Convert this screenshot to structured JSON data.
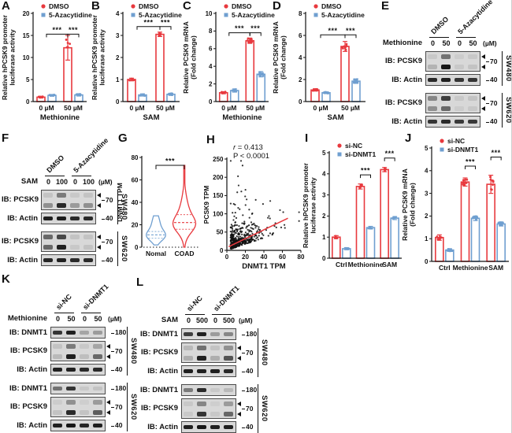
{
  "colors": {
    "red": "#e8393e",
    "blue": "#6f9fd0",
    "ink": "#111111",
    "blot_bg": "#d8d8d8"
  },
  "panels": {
    "A": {
      "letter": "A"
    },
    "B": {
      "letter": "B"
    },
    "C": {
      "letter": "C"
    },
    "D": {
      "letter": "D"
    },
    "E": {
      "letter": "E"
    },
    "F": {
      "letter": "F"
    },
    "G": {
      "letter": "G"
    },
    "H": {
      "letter": "H"
    },
    "I": {
      "letter": "I"
    },
    "J": {
      "letter": "J"
    },
    "K": {
      "letter": "K"
    },
    "L": {
      "letter": "L"
    }
  },
  "chart_data": [
    {
      "panel": "A",
      "type": "bar",
      "ylabel_lines": [
        "Relative hPCSK9 promoter",
        "luciferase activity"
      ],
      "ylim": [
        0,
        20
      ],
      "yticks": [
        0,
        5,
        10,
        15,
        20
      ],
      "categories": [
        "0 µM",
        "50 µM"
      ],
      "xlabel": "Methionine",
      "legend": [
        "DMSO",
        "5-Azacytidine"
      ],
      "legend_pos": "top",
      "series": [
        {
          "name": "DMSO",
          "color": "red",
          "values": [
            1.0,
            12.2
          ],
          "errors": [
            0.2,
            2.8
          ]
        },
        {
          "name": "5-Azacytidine",
          "color": "blue",
          "values": [
            1.4,
            1.5
          ],
          "errors": [
            0.2,
            0.25
          ]
        }
      ],
      "significance": [
        {
          "label": "***",
          "from": [
            0,
            -1
          ],
          "to": [
            1,
            0
          ],
          "y": 15.3
        },
        {
          "label": "***",
          "from": [
            1,
            0
          ],
          "to": [
            1,
            1
          ],
          "y": 15.3
        }
      ],
      "dots": 5,
      "ml": 40
    },
    {
      "panel": "B",
      "type": "bar",
      "ylabel_lines": [
        "Relative hPCSK9 promoter",
        "luciferase activity"
      ],
      "ylim": [
        0,
        4
      ],
      "yticks": [
        0,
        1,
        2,
        3,
        4
      ],
      "categories": [
        "0 µM",
        "50 µM"
      ],
      "xlabel": "SAM",
      "legend": [
        "DMSO",
        "5-Azacytidine"
      ],
      "legend_pos": "top",
      "series": [
        {
          "name": "DMSO",
          "color": "red",
          "values": [
            1.0,
            3.05
          ],
          "errors": [
            0.06,
            0.1
          ]
        },
        {
          "name": "5-Azacytidine",
          "color": "blue",
          "values": [
            0.3,
            0.33
          ],
          "errors": [
            0.05,
            0.05
          ]
        }
      ],
      "significance": [
        {
          "label": "***",
          "from": [
            0,
            -1
          ],
          "to": [
            1,
            0
          ],
          "y": 3.4
        },
        {
          "label": "***",
          "from": [
            1,
            0
          ],
          "to": [
            1,
            1
          ],
          "y": 3.4
        }
      ],
      "dots": 4,
      "ml": 40
    },
    {
      "panel": "C",
      "type": "bar",
      "ylabel_lines": [
        "Relative PCSK9 mRNA",
        "(Fold change)"
      ],
      "ylim": [
        0,
        10
      ],
      "yticks": [
        0,
        2,
        4,
        6,
        8,
        10
      ],
      "categories": [
        "0 µM",
        "50 µM"
      ],
      "xlabel": "Methionine",
      "legend": [
        "DMSO",
        "5-Azacytidine"
      ],
      "legend_pos": "top",
      "series": [
        {
          "name": "DMSO",
          "color": "red",
          "values": [
            1.0,
            6.9
          ],
          "errors": [
            0.12,
            0.3
          ]
        },
        {
          "name": "5-Azacytidine",
          "color": "blue",
          "values": [
            1.25,
            3.1
          ],
          "errors": [
            0.18,
            0.3
          ]
        }
      ],
      "significance": [
        {
          "label": "***",
          "from": [
            0,
            -1
          ],
          "to": [
            1,
            0
          ],
          "y": 7.8
        },
        {
          "label": "***",
          "from": [
            1,
            0
          ],
          "to": [
            1,
            1
          ],
          "y": 7.8
        }
      ],
      "dots": 9,
      "ml": 42
    },
    {
      "panel": "D",
      "type": "bar",
      "ylabel_lines": [
        "Relative PCSK9 mRNA",
        "(Fold change)"
      ],
      "ylim": [
        0,
        8
      ],
      "yticks": [
        0,
        2,
        4,
        6,
        8
      ],
      "categories": [
        "0 µM",
        "50 µM"
      ],
      "xlabel": "SAM",
      "legend": [
        "DMSO",
        "5-Azacytidine"
      ],
      "legend_pos": "top",
      "series": [
        {
          "name": "DMSO",
          "color": "red",
          "values": [
            1.05,
            5.0
          ],
          "errors": [
            0.1,
            0.45
          ]
        },
        {
          "name": "5-Azacytidine",
          "color": "blue",
          "values": [
            0.8,
            1.85
          ],
          "errors": [
            0.08,
            0.2
          ]
        }
      ],
      "significance": [
        {
          "label": "***",
          "from": [
            0,
            -1
          ],
          "to": [
            1,
            0
          ],
          "y": 6.05
        },
        {
          "label": "***",
          "from": [
            1,
            0
          ],
          "to": [
            1,
            1
          ],
          "y": 6.05
        }
      ],
      "dots": 9,
      "ml": 42
    },
    {
      "panel": "G",
      "type": "violin",
      "ylabel": "DNMT1 TPM",
      "ylim": [
        0,
        80
      ],
      "yticks": [
        0,
        20,
        40,
        60,
        80
      ],
      "categories": [
        "Nomal",
        "COAD"
      ],
      "violins": [
        {
          "name": "Nomal",
          "color": "blue",
          "min": 2,
          "max": 28,
          "mode": 10,
          "spread": 4.5,
          "median": 11,
          "q1": 8,
          "q3": 14
        },
        {
          "name": "COAD",
          "color": "red",
          "min": 0,
          "max": 73,
          "mode": 20,
          "spread": 7,
          "median": 22,
          "q1": 16,
          "q3": 29
        }
      ],
      "significance": [
        {
          "label": "***",
          "y": 73
        }
      ],
      "zero_line": "dashed",
      "ml": 34
    },
    {
      "panel": "H",
      "type": "scatter",
      "xlabel": "DNMT1 TPM",
      "ylabel": "PCSK9 TPM",
      "xlim": [
        0,
        80
      ],
      "ylim": [
        0,
        250
      ],
      "xticks": [
        0,
        20,
        40,
        60,
        80
      ],
      "yticks": [
        0,
        50,
        100,
        150,
        200,
        250
      ],
      "correlation_r": "0.413",
      "p_value": "P < 0.0001",
      "trendline": {
        "x1": 2,
        "y1": 10,
        "x2": 66,
        "y2": 88,
        "color": "red"
      },
      "n_points": 480,
      "seed": 11,
      "ml": 32
    },
    {
      "panel": "I",
      "type": "bar",
      "ylabel_lines": [
        "Relative hPCSK9 promoter",
        "luciferase activity"
      ],
      "ylim": [
        0,
        5
      ],
      "yticks": [
        0,
        1,
        2,
        3,
        4,
        5
      ],
      "categories": [
        "Ctrl",
        "Methionine",
        "SAM"
      ],
      "xlabel": "",
      "legend": [
        "si-NC",
        "si-DNMT1"
      ],
      "legend_pos": "top",
      "series": [
        {
          "name": "si-NC",
          "color": "red",
          "values": [
            1.0,
            3.4,
            4.2
          ],
          "errors": [
            0.07,
            0.12,
            0.1
          ]
        },
        {
          "name": "si-DNMT1",
          "color": "blue",
          "values": [
            0.45,
            1.45,
            1.9
          ],
          "errors": [
            0.05,
            0.06,
            0.07
          ]
        }
      ],
      "significance": [
        {
          "label": "***",
          "from": [
            1,
            0
          ],
          "to": [
            1,
            1
          ],
          "y": 3.95
        },
        {
          "label": "***",
          "from": [
            2,
            0
          ],
          "to": [
            2,
            1
          ],
          "y": 4.75
        }
      ],
      "dots": 4,
      "ml": 34
    },
    {
      "panel": "J",
      "type": "bar",
      "ylabel_lines": [
        "Relative PCSK9 mRNA",
        "(Fold change)"
      ],
      "ylim": [
        0,
        5
      ],
      "yticks": [
        0,
        1,
        2,
        3,
        4,
        5
      ],
      "categories": [
        "Ctrl",
        "Methionine",
        "SAM"
      ],
      "xlabel": "",
      "legend": [
        "si-NC",
        "si-DNMT1"
      ],
      "legend_pos": "top",
      "series": [
        {
          "name": "si-NC",
          "color": "red",
          "values": [
            1.05,
            3.5,
            3.4
          ],
          "errors": [
            0.12,
            0.18,
            0.4
          ]
        },
        {
          "name": "si-DNMT1",
          "color": "blue",
          "values": [
            0.5,
            1.9,
            1.65
          ],
          "errors": [
            0.06,
            0.1,
            0.09
          ]
        }
      ],
      "significance": [
        {
          "label": "***",
          "from": [
            1,
            0
          ],
          "to": [
            1,
            1
          ],
          "y": 4.2
        },
        {
          "label": "***",
          "from": [
            2,
            0
          ],
          "to": [
            2,
            1
          ],
          "y": 4.6
        }
      ],
      "dots": 10,
      "ml": 38
    }
  ],
  "blots": {
    "E": {
      "dose_label": "Methionine",
      "doses": [
        "0",
        "50",
        "0",
        "50"
      ],
      "unit": "(µM)",
      "group_labels": [
        "DMSO",
        "5-Azacytidine"
      ],
      "label_col": 58,
      "sections": [
        {
          "cell_line": "SW480",
          "rows": [
            {
              "label": "IB: PCSK9",
              "marker": "70",
              "arrows": true,
              "h": 26,
              "bands": [
                [
                  0.08,
                  0.5,
                  0.06,
                  0.08
                ],
                [
                  0.18,
                  0.95,
                  0.08,
                  0.1
                ]
              ]
            },
            {
              "label": "IB: Actin",
              "marker": "40",
              "h": 15,
              "bands": [
                [
                  0.85,
                  0.9,
                  0.8,
                  0.8
                ]
              ]
            }
          ]
        },
        {
          "cell_line": "SW620",
          "rows": [
            {
              "label": "IB: PCSK9",
              "marker": "70",
              "arrows": true,
              "h": 26,
              "bands": [
                [
                  0.4,
                  0.75,
                  0.08,
                  0.1
                ],
                [
                  0.35,
                  0.55,
                  0.06,
                  0.08
                ]
              ]
            },
            {
              "label": "IB: Actin",
              "marker": "40",
              "h": 15,
              "bands": [
                [
                  0.8,
                  0.85,
                  0.78,
                  0.78
                ]
              ]
            }
          ]
        }
      ]
    },
    "F": {
      "dose_label": "SAM",
      "doses": [
        "0",
        "100",
        "0",
        "100"
      ],
      "unit": "(µM)",
      "group_labels": [
        "DMSO",
        "5-Azacytidine"
      ],
      "label_col": 50,
      "sections": [
        {
          "cell_line": "SW480",
          "rows": [
            {
              "label": "IB: PCSK9",
              "marker": "70",
              "arrows": true,
              "h": 26,
              "bands": [
                [
                  0.1,
                  0.45,
                  0.08,
                  0.1
                ],
                [
                  0.35,
                  0.85,
                  0.3,
                  0.35
                ]
              ]
            },
            {
              "label": "IB: Actin",
              "marker": "40",
              "h": 15,
              "bands": [
                [
                  0.9,
                  0.92,
                  0.85,
                  0.85
                ]
              ]
            }
          ]
        },
        {
          "cell_line": "SW620",
          "rows": [
            {
              "label": "IB: PCSK9",
              "marker": "70",
              "arrows": true,
              "h": 26,
              "bands": [
                [
                  0.55,
                  0.7,
                  0.1,
                  0.1
                ],
                [
                  0.55,
                  0.9,
                  0.08,
                  0.1
                ]
              ]
            },
            {
              "label": "IB: Actin",
              "marker": "40",
              "h": 15,
              "bands": [
                [
                  0.88,
                  0.9,
                  0.85,
                  0.85
                ]
              ]
            }
          ]
        }
      ]
    },
    "K": {
      "dose_label": "Methionine",
      "doses": [
        "0",
        "50",
        "0",
        "50"
      ],
      "unit": "(µM)",
      "group_labels": [
        "si-NC",
        "si-DNMT1"
      ],
      "label_col": 62,
      "sections": [
        {
          "cell_line": "SW480",
          "rows": [
            {
              "label": "IB: DNMT1",
              "marker": "180",
              "h": 15,
              "bands": [
                [
                  0.8,
                  0.9,
                  0.25,
                  0.3
                ]
              ]
            },
            {
              "label": "IB: PCSK9",
              "marker": "70",
              "arrows": true,
              "h": 26,
              "bands": [
                [
                  0.1,
                  0.45,
                  0.08,
                  0.25
                ],
                [
                  0.15,
                  0.9,
                  0.12,
                  0.55
                ]
              ]
            },
            {
              "label": "IB: Actin",
              "marker": "40",
              "h": 15,
              "bands": [
                [
                  0.9,
                  0.9,
                  0.85,
                  0.85
                ]
              ]
            }
          ]
        },
        {
          "cell_line": "SW620",
          "rows": [
            {
              "label": "IB: DNMT1",
              "marker": "180",
              "h": 15,
              "bands": [
                [
                  0.5,
                  0.8,
                  0.08,
                  0.1
                ]
              ]
            },
            {
              "label": "IB: PCSK9",
              "marker": "70",
              "arrows": true,
              "h": 26,
              "bands": [
                [
                  0.06,
                  0.35,
                  0.05,
                  0.3
                ],
                [
                  0.1,
                  0.85,
                  0.1,
                  0.6
                ]
              ]
            },
            {
              "label": "IB: Actin",
              "marker": "40",
              "h": 15,
              "bands": [
                [
                  0.9,
                  0.95,
                  0.88,
                  0.9
                ]
              ]
            }
          ]
        }
      ]
    },
    "L": {
      "dose_label": "SAM",
      "doses": [
        "0",
        "500",
        "0",
        "500"
      ],
      "unit": "(µM)",
      "group_labels": [
        "si-NC",
        "si-DNMT1"
      ],
      "label_col": 58,
      "sections": [
        {
          "cell_line": "SW480",
          "rows": [
            {
              "label": "IB: DNMT1",
              "marker": "180",
              "h": 15,
              "bands": [
                [
                  0.75,
                  0.9,
                  0.3,
                  0.4
                ]
              ]
            },
            {
              "label": "IB: PCSK9",
              "marker": "70",
              "arrows": true,
              "h": 26,
              "bands": [
                [
                  0.15,
                  0.5,
                  0.1,
                  0.35
                ],
                [
                  0.2,
                  0.9,
                  0.2,
                  0.65
                ]
              ]
            },
            {
              "label": "IB: Actin",
              "marker": "40",
              "h": 15,
              "bands": [
                [
                  0.9,
                  0.9,
                  0.9,
                  0.85
                ]
              ]
            }
          ]
        },
        {
          "cell_line": "SW620",
          "rows": [
            {
              "label": "IB: DNMT1",
              "marker": "180",
              "h": 15,
              "bands": [
                [
                  0.45,
                  0.85,
                  0.08,
                  0.15
                ]
              ]
            },
            {
              "label": "IB: PCSK9",
              "marker": "70",
              "arrows": true,
              "h": 26,
              "bands": [
                [
                  0.08,
                  0.4,
                  0.05,
                  0.3
                ],
                [
                  0.08,
                  0.8,
                  0.08,
                  0.55
                ]
              ]
            },
            {
              "label": "IB: Actin",
              "marker": "40",
              "h": 15,
              "bands": [
                [
                  0.9,
                  0.95,
                  0.9,
                  0.9
                ]
              ]
            }
          ]
        }
      ]
    }
  }
}
